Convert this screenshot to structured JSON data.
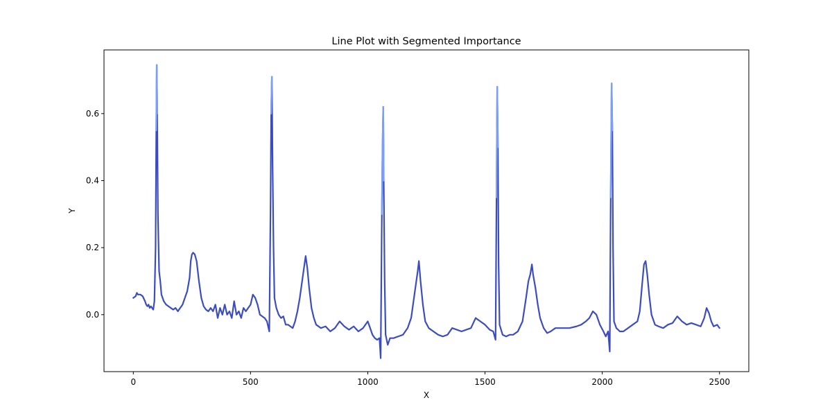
{
  "chart_data": {
    "type": "line",
    "title": "Line Plot with Segmented Importance",
    "xlabel": "X",
    "ylabel": "Y",
    "xlim": [
      -125,
      2625
    ],
    "ylim": [
      -0.17,
      0.79
    ],
    "xticks": [
      0,
      500,
      1000,
      1500,
      2000,
      2500
    ],
    "yticks": [
      0.0,
      0.2,
      0.4,
      0.6
    ],
    "xtick_labels": [
      "0",
      "500",
      "1000",
      "1500",
      "2000",
      "2500"
    ],
    "ytick_labels": [
      "0.0",
      "0.2",
      "0.4",
      "0.6"
    ],
    "grid": false,
    "legend": false,
    "colors": {
      "low_importance": "#3b4cc0",
      "mid_importance": "#7b9ff9",
      "high_importance": "#f4c6af"
    },
    "series": [
      {
        "importance": "segmented",
        "points": [
          [
            0,
            0.05
          ],
          [
            10,
            0.055
          ],
          [
            15,
            0.065
          ],
          [
            20,
            0.06
          ],
          [
            30,
            0.06
          ],
          [
            40,
            0.055
          ],
          [
            50,
            0.04
          ],
          [
            55,
            0.03
          ],
          [
            60,
            0.025
          ],
          [
            65,
            0.03
          ],
          [
            70,
            0.02
          ],
          [
            75,
            0.025
          ],
          [
            80,
            0.02
          ],
          [
            85,
            0.015
          ],
          [
            90,
            0.04
          ],
          [
            95,
            0.2
          ],
          [
            98,
            0.55
          ],
          [
            100,
            0.745
          ],
          [
            102,
            0.6
          ],
          [
            105,
            0.3
          ],
          [
            110,
            0.13
          ],
          [
            115,
            0.1
          ],
          [
            120,
            0.06
          ],
          [
            130,
            0.04
          ],
          [
            140,
            0.03
          ],
          [
            150,
            0.025
          ],
          [
            160,
            0.02
          ],
          [
            170,
            0.015
          ],
          [
            180,
            0.02
          ],
          [
            190,
            0.01
          ],
          [
            200,
            0.02
          ],
          [
            210,
            0.03
          ],
          [
            220,
            0.05
          ],
          [
            230,
            0.07
          ],
          [
            240,
            0.11
          ],
          [
            245,
            0.16
          ],
          [
            250,
            0.18
          ],
          [
            255,
            0.185
          ],
          [
            262,
            0.18
          ],
          [
            270,
            0.16
          ],
          [
            280,
            0.1
          ],
          [
            290,
            0.05
          ],
          [
            300,
            0.025
          ],
          [
            310,
            0.015
          ],
          [
            320,
            0.01
          ],
          [
            330,
            0.02
          ],
          [
            340,
            0.01
          ],
          [
            350,
            0.03
          ],
          [
            360,
            -0.01
          ],
          [
            370,
            0.02
          ],
          [
            380,
            0.0
          ],
          [
            390,
            0.03
          ],
          [
            400,
            0.0
          ],
          [
            410,
            0.01
          ],
          [
            420,
            -0.01
          ],
          [
            430,
            0.04
          ],
          [
            440,
            0.0
          ],
          [
            450,
            0.01
          ],
          [
            460,
            -0.01
          ],
          [
            470,
            0.02
          ],
          [
            480,
            0.01
          ],
          [
            490,
            0.02
          ],
          [
            500,
            0.03
          ],
          [
            510,
            0.06
          ],
          [
            520,
            0.05
          ],
          [
            530,
            0.03
          ],
          [
            540,
            0.0
          ],
          [
            550,
            -0.005
          ],
          [
            560,
            -0.01
          ],
          [
            570,
            -0.02
          ],
          [
            580,
            -0.05
          ],
          [
            585,
            0.3
          ],
          [
            588,
            0.6
          ],
          [
            591,
            0.71
          ],
          [
            594,
            0.45
          ],
          [
            598,
            0.2
          ],
          [
            602,
            0.05
          ],
          [
            610,
            0.02
          ],
          [
            620,
            0.0
          ],
          [
            630,
            -0.01
          ],
          [
            640,
            -0.005
          ],
          [
            650,
            -0.03
          ],
          [
            660,
            -0.03
          ],
          [
            670,
            -0.035
          ],
          [
            680,
            -0.04
          ],
          [
            690,
            -0.02
          ],
          [
            700,
            0.01
          ],
          [
            710,
            0.05
          ],
          [
            720,
            0.1
          ],
          [
            730,
            0.15
          ],
          [
            735,
            0.175
          ],
          [
            742,
            0.14
          ],
          [
            750,
            0.08
          ],
          [
            760,
            0.02
          ],
          [
            770,
            -0.01
          ],
          [
            780,
            -0.03
          ],
          [
            800,
            -0.04
          ],
          [
            820,
            -0.035
          ],
          [
            840,
            -0.05
          ],
          [
            860,
            -0.04
          ],
          [
            880,
            -0.02
          ],
          [
            900,
            -0.035
          ],
          [
            920,
            -0.045
          ],
          [
            940,
            -0.035
          ],
          [
            960,
            -0.05
          ],
          [
            980,
            -0.04
          ],
          [
            1000,
            -0.02
          ],
          [
            1010,
            -0.04
          ],
          [
            1020,
            -0.06
          ],
          [
            1030,
            -0.07
          ],
          [
            1040,
            -0.075
          ],
          [
            1050,
            -0.07
          ],
          [
            1055,
            -0.13
          ],
          [
            1060,
            0.3
          ],
          [
            1063,
            0.5
          ],
          [
            1066,
            0.62
          ],
          [
            1068,
            0.4
          ],
          [
            1072,
            0.1
          ],
          [
            1076,
            -0.06
          ],
          [
            1085,
            -0.09
          ],
          [
            1095,
            -0.07
          ],
          [
            1110,
            -0.07
          ],
          [
            1130,
            -0.065
          ],
          [
            1150,
            -0.06
          ],
          [
            1170,
            -0.04
          ],
          [
            1185,
            -0.01
          ],
          [
            1195,
            0.04
          ],
          [
            1205,
            0.09
          ],
          [
            1213,
            0.13
          ],
          [
            1218,
            0.16
          ],
          [
            1225,
            0.1
          ],
          [
            1235,
            0.03
          ],
          [
            1245,
            -0.02
          ],
          [
            1260,
            -0.04
          ],
          [
            1280,
            -0.05
          ],
          [
            1300,
            -0.06
          ],
          [
            1320,
            -0.065
          ],
          [
            1340,
            -0.06
          ],
          [
            1360,
            -0.04
          ],
          [
            1380,
            -0.045
          ],
          [
            1400,
            -0.05
          ],
          [
            1420,
            -0.045
          ],
          [
            1440,
            -0.04
          ],
          [
            1460,
            -0.01
          ],
          [
            1480,
            -0.02
          ],
          [
            1500,
            -0.03
          ],
          [
            1520,
            -0.045
          ],
          [
            1535,
            -0.05
          ],
          [
            1545,
            -0.075
          ],
          [
            1549,
            0.35
          ],
          [
            1552,
            0.68
          ],
          [
            1555,
            0.5
          ],
          [
            1558,
            0.15
          ],
          [
            1562,
            -0.03
          ],
          [
            1575,
            -0.06
          ],
          [
            1590,
            -0.065
          ],
          [
            1605,
            -0.06
          ],
          [
            1620,
            -0.06
          ],
          [
            1640,
            -0.05
          ],
          [
            1660,
            -0.02
          ],
          [
            1675,
            0.05
          ],
          [
            1685,
            0.1
          ],
          [
            1693,
            0.12
          ],
          [
            1700,
            0.15
          ],
          [
            1705,
            0.12
          ],
          [
            1715,
            0.08
          ],
          [
            1725,
            0.03
          ],
          [
            1735,
            -0.01
          ],
          [
            1750,
            -0.04
          ],
          [
            1765,
            -0.055
          ],
          [
            1780,
            -0.05
          ],
          [
            1800,
            -0.04
          ],
          [
            1830,
            -0.04
          ],
          [
            1860,
            -0.04
          ],
          [
            1890,
            -0.035
          ],
          [
            1910,
            -0.03
          ],
          [
            1930,
            -0.02
          ],
          [
            1945,
            -0.01
          ],
          [
            1960,
            0.01
          ],
          [
            1975,
            0.0
          ],
          [
            1990,
            -0.03
          ],
          [
            2005,
            -0.05
          ],
          [
            2015,
            -0.065
          ],
          [
            2025,
            -0.05
          ],
          [
            2032,
            -0.11
          ],
          [
            2036,
            0.35
          ],
          [
            2040,
            0.69
          ],
          [
            2043,
            0.55
          ],
          [
            2046,
            0.2
          ],
          [
            2050,
            -0.02
          ],
          [
            2060,
            -0.04
          ],
          [
            2075,
            -0.05
          ],
          [
            2090,
            -0.05
          ],
          [
            2110,
            -0.04
          ],
          [
            2130,
            -0.03
          ],
          [
            2150,
            -0.02
          ],
          [
            2160,
            0.01
          ],
          [
            2170,
            0.09
          ],
          [
            2178,
            0.15
          ],
          [
            2185,
            0.16
          ],
          [
            2192,
            0.12
          ],
          [
            2200,
            0.06
          ],
          [
            2210,
            0.0
          ],
          [
            2225,
            -0.03
          ],
          [
            2240,
            -0.035
          ],
          [
            2260,
            -0.04
          ],
          [
            2280,
            -0.03
          ],
          [
            2300,
            -0.025
          ],
          [
            2320,
            -0.005
          ],
          [
            2340,
            -0.02
          ],
          [
            2360,
            -0.03
          ],
          [
            2380,
            -0.025
          ],
          [
            2400,
            -0.03
          ],
          [
            2420,
            -0.035
          ],
          [
            2435,
            -0.01
          ],
          [
            2445,
            0.02
          ],
          [
            2455,
            0.005
          ],
          [
            2465,
            -0.02
          ],
          [
            2475,
            -0.035
          ],
          [
            2490,
            -0.03
          ],
          [
            2500,
            -0.04
          ]
        ],
        "highlights": [
          {
            "x_range": [
              96,
              104
            ],
            "color": "#7b9ff9"
          },
          {
            "x_range": [
              587,
              593
            ],
            "color": "#7b9ff9"
          },
          {
            "x_range": [
              1059,
              1069
            ],
            "color": "#7b9ff9"
          },
          {
            "x_range": [
              1061,
              1064
            ],
            "color": "#f4c6af"
          },
          {
            "x_range": [
              1549,
              1555
            ],
            "color": "#7b9ff9"
          },
          {
            "x_range": [
              2036,
              2043
            ],
            "color": "#7b9ff9"
          }
        ]
      }
    ]
  }
}
